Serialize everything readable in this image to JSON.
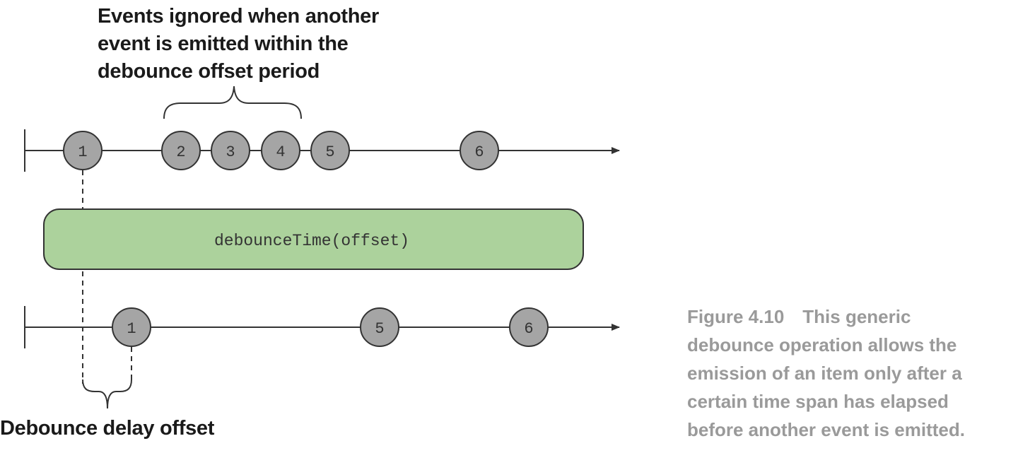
{
  "top_annotation": {
    "lines": [
      "Events ignored when another",
      "event is emitted within the",
      "debounce offset period"
    ]
  },
  "bottom_annotation": {
    "text": "Debounce delay offset"
  },
  "operator": {
    "label": "debounceTime(offset)",
    "fill": "#acd29c"
  },
  "input_stream": {
    "events": [
      "1",
      "2",
      "3",
      "4",
      "5",
      "6"
    ]
  },
  "output_stream": {
    "events": [
      "1",
      "5",
      "6"
    ]
  },
  "caption": {
    "figure": "Figure 4.10",
    "lines": [
      "This generic",
      "debounce operation allows the",
      "emission of an item only after a",
      "certain time span has elapsed",
      "before another event is emitted."
    ]
  },
  "colors": {
    "marble_fill": "#a5a5a5",
    "line": "#333333",
    "caption_text": "#9a9a9a"
  }
}
